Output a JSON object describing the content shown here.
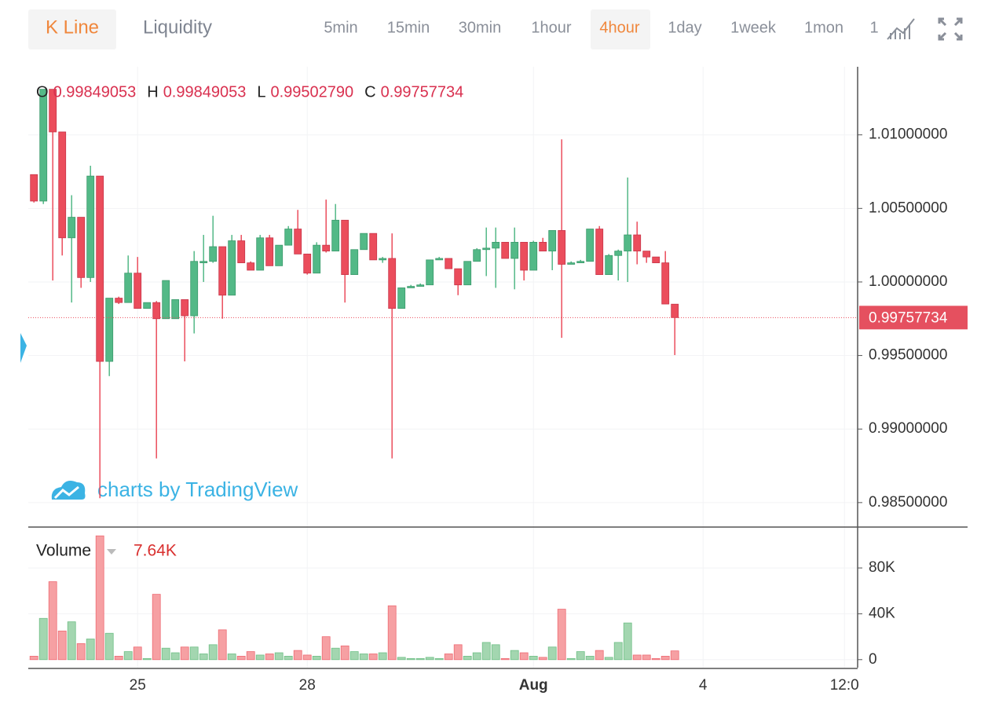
{
  "toolbar": {
    "tabs": [
      "K Line",
      "Liquidity"
    ],
    "intervals": [
      "5min",
      "15min",
      "30min",
      "1hour",
      "4hour",
      "1day",
      "1week",
      "1mon",
      "1"
    ],
    "selected_tab": 0,
    "selected_interval": 4
  },
  "watermark": "charts by TradingView",
  "chart_data": [
    {
      "type": "candlestick",
      "ohlc_labels": [
        {
          "name": "O",
          "label": "0.99849053"
        },
        {
          "name": "H",
          "label": "0.99849053"
        },
        {
          "name": "L",
          "label": "0.99502790"
        },
        {
          "name": "C",
          "label": "0.99757734"
        }
      ],
      "up_color": "#53b987",
      "down_color": "#eb4d5c",
      "open": [
        1.0073,
        1.0055,
        1.0131,
        1.0102,
        1.003,
        1.0044,
        1.0003,
        1.0072,
        0.9946,
        0.9989,
        0.9986,
        1.0006,
        0.9982,
        0.9986,
        0.9975,
        0.9975,
        0.9988,
        0.9977,
        1.0013,
        1.0014,
        1.0024,
        0.9991,
        1.0028,
        1.0013,
        1.0008,
        1.003,
        1.0011,
        1.0025,
        1.0036,
        1.0019,
        1.0006,
        1.0025,
        1.0021,
        1.0042,
        1.0005,
        1.0022,
        1.0033,
        1.0015,
        1.0016,
        0.9982,
        0.9996,
        0.9997,
        0.9998,
        1.0015,
        1.0016,
        1.0009,
        0.9998,
        1.0014,
        1.0022,
        1.0023,
        1.0027,
        1.0016,
        1.0027,
        1.0008,
        1.0027,
        1.0021,
        1.0035,
        1.0012,
        1.0013,
        1.0014,
        1.0036,
        1.0005,
        1.0018,
        1.0021,
        1.0032,
        1.0021,
        1.0017,
        1.0013,
        0.99849053
      ],
      "close": [
        1.0055,
        1.0131,
        1.0102,
        1.003,
        1.0044,
        1.0003,
        1.0072,
        0.9946,
        0.9989,
        0.9986,
        1.0006,
        0.9982,
        0.9986,
        0.9975,
        1.0001,
        0.9988,
        0.9977,
        1.0014,
        1.0014,
        1.0024,
        0.9991,
        1.0028,
        1.0013,
        1.0008,
        1.003,
        1.0011,
        1.0025,
        1.0036,
        1.0019,
        1.0006,
        1.0025,
        1.0021,
        1.0042,
        1.0005,
        1.0022,
        1.0033,
        1.0015,
        1.0016,
        0.9982,
        0.9996,
        0.9997,
        0.9998,
        1.0015,
        1.0016,
        1.0009,
        0.9998,
        1.0014,
        1.0022,
        1.0023,
        1.0027,
        1.0016,
        1.0027,
        1.0008,
        1.0027,
        1.0021,
        1.0035,
        1.0012,
        1.0013,
        1.0014,
        1.0036,
        1.0005,
        1.0018,
        1.0021,
        1.0032,
        1.0021,
        1.0017,
        1.0013,
        0.9985,
        0.99757734
      ],
      "high": [
        1.0073,
        1.0131,
        1.0131,
        1.0102,
        1.0059,
        1.0044,
        1.0079,
        1.0072,
        0.9989,
        0.999,
        1.0018,
        1.0017,
        0.9986,
        0.9987,
        1.0001,
        0.9988,
        0.9988,
        1.0021,
        1.0032,
        1.0045,
        1.0024,
        1.0032,
        1.0032,
        1.0014,
        1.0032,
        1.0032,
        1.0025,
        1.0038,
        1.0049,
        1.0019,
        1.0027,
        1.0056,
        1.0053,
        1.0042,
        1.0022,
        1.0033,
        1.0033,
        1.0017,
        1.0033,
        0.9996,
        0.9998,
        0.9999,
        1.0015,
        1.0017,
        1.0016,
        1.0009,
        1.0014,
        1.0023,
        1.0037,
        1.0037,
        1.0027,
        1.0037,
        1.0027,
        1.0028,
        1.003,
        1.0035,
        1.0097,
        1.0014,
        1.0015,
        1.0036,
        1.0038,
        1.0019,
        1.0022,
        1.0071,
        1.0041,
        1.0021,
        1.0017,
        1.0021,
        0.99849053
      ],
      "low": [
        1.0054,
        1.0053,
        1.0001,
        1.0018,
        0.9986,
        0.9996,
        1.0,
        0.9853,
        0.9936,
        0.9985,
        0.9986,
        0.9982,
        0.9982,
        0.988,
        0.9975,
        0.9975,
        0.9946,
        0.9965,
        1.0,
        1.0013,
        0.9975,
        0.9991,
        1.0013,
        1.0008,
        1.0008,
        1.0011,
        1.0011,
        1.0025,
        1.0019,
        1.0005,
        1.0006,
        1.002,
        1.0021,
        0.9986,
        1.0005,
        1.0022,
        1.0015,
        1.0013,
        0.988,
        0.9982,
        0.9996,
        0.9997,
        0.9998,
        1.0015,
        1.0009,
        0.9991,
        0.9998,
        1.0014,
        1.0004,
        0.9996,
        1.0016,
        0.9995,
        1.0001,
        1.0008,
        1.0021,
        1.0008,
        0.9962,
        1.0012,
        1.0013,
        1.0014,
        1.0005,
        1.0005,
        1.0001,
        1.0,
        1.0012,
        1.0013,
        1.0013,
        0.9985,
        0.9950279
      ],
      "xlim": [
        -0.6,
        87.4
      ],
      "xticks": [
        {
          "value": 11,
          "label": "25"
        },
        {
          "value": 29,
          "label": "28"
        },
        {
          "value": 53,
          "label": "Aug"
        },
        {
          "value": 71,
          "label": "4"
        },
        {
          "value": 86,
          "label": "12:0"
        }
      ],
      "ylim": [
        0.98339,
        1.01463
      ],
      "yticks": [
        {
          "value": 1.01,
          "label": "1.01000000"
        },
        {
          "value": 1.005,
          "label": "1.00500000"
        },
        {
          "value": 1.0,
          "label": "1.00000000"
        },
        {
          "value": 0.995,
          "label": "0.99500000"
        },
        {
          "value": 0.99,
          "label": "0.99000000"
        },
        {
          "value": 0.985,
          "label": "0.98500000"
        }
      ],
      "grid": true
    },
    {
      "type": "volume",
      "title": "Volume",
      "values": [
        3000,
        36000,
        68000,
        25000,
        33000,
        14000,
        18000,
        108000,
        23000,
        3000,
        7000,
        11000,
        1000,
        57000,
        10000,
        6000,
        11000,
        11000,
        5000,
        13000,
        26000,
        5000,
        3000,
        7000,
        4000,
        5000,
        6000,
        3000,
        8000,
        4000,
        3000,
        20000,
        10000,
        12000,
        7000,
        5000,
        5000,
        6000,
        47000,
        2000,
        1000,
        1000,
        2000,
        1000,
        5000,
        13000,
        3000,
        6000,
        15000,
        13000,
        1000,
        8000,
        6000,
        3000,
        2000,
        11000,
        44000,
        1000,
        7000,
        3000,
        8000,
        2000,
        15000,
        32000,
        4000,
        4000,
        1000,
        3000,
        7640
      ],
      "value_labels": {
        "68": "7.64K"
      },
      "up_color": "#a3d6b0",
      "down_color": "#f6a0a3",
      "ylim": [
        -7000,
        115000
      ],
      "yticks": [
        {
          "value": 80000,
          "label": "80K"
        },
        {
          "value": 40000,
          "label": "40K"
        },
        0
      ],
      "grid": true
    }
  ]
}
